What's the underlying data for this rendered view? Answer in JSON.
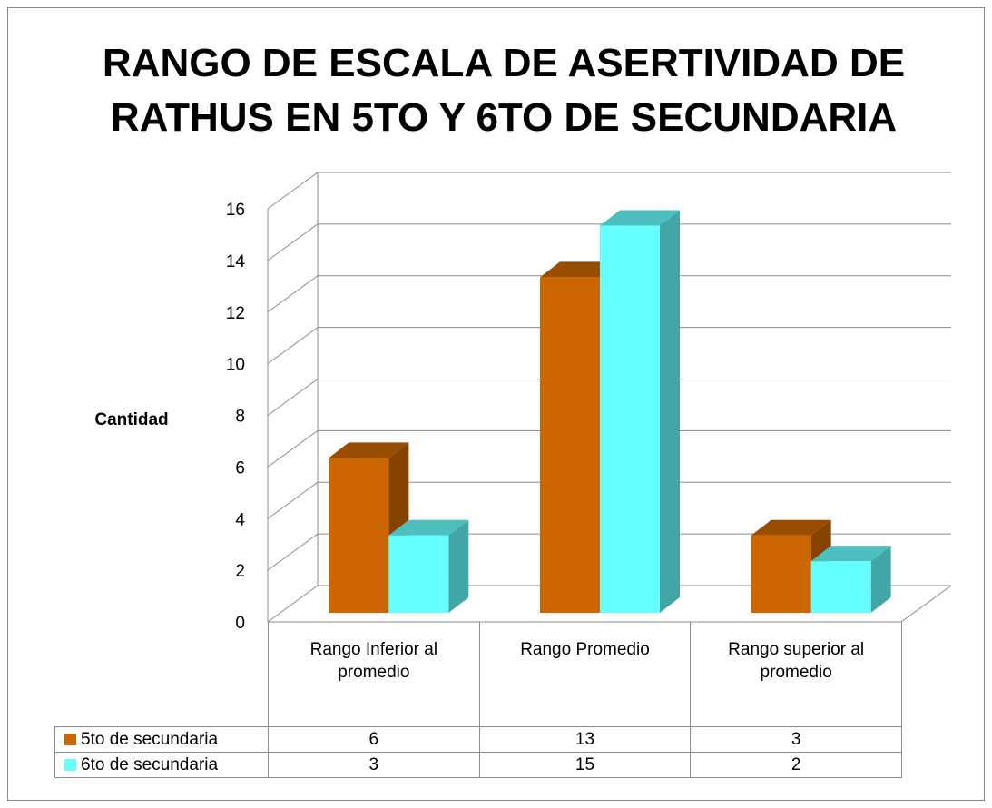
{
  "chart_data": {
    "type": "bar3d",
    "title": "RANGO DE ESCALA DE ASERTIVIDAD DE RATHUS EN 5TO Y 6TO DE SECUNDARIA",
    "y_label": "Cantidad",
    "categories": [
      "Rango Inferior al promedio",
      "Rango Promedio",
      "Rango superior al promedio"
    ],
    "series": [
      {
        "name": "5to de secundaria",
        "color": "#cc6600",
        "values": [
          6,
          13,
          3
        ]
      },
      {
        "name": "6to de secundaria",
        "color": "#66ffff",
        "values": [
          3,
          15,
          2
        ]
      }
    ],
    "ylim": [
      0,
      16
    ],
    "yticks": [
      0,
      2,
      4,
      6,
      8,
      10,
      12,
      14,
      16
    ],
    "grid": true,
    "data_table": true
  }
}
